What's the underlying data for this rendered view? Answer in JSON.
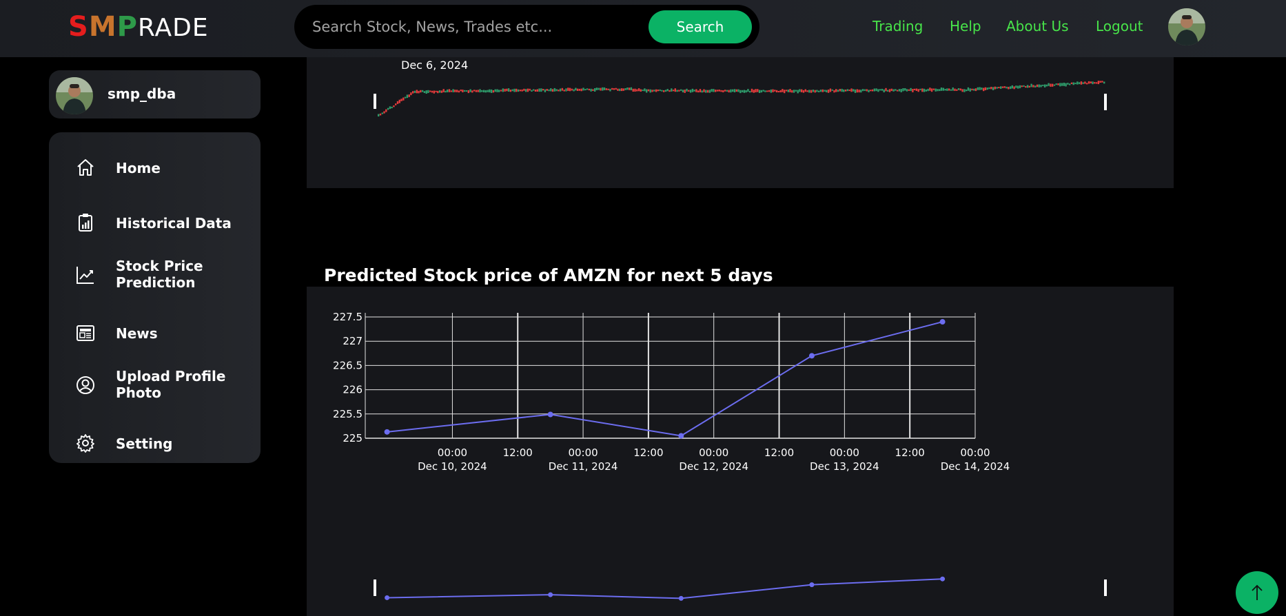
{
  "header": {
    "logo": {
      "s": "S",
      "m": "M",
      "p": "P",
      "rade": "RADE"
    },
    "search_placeholder": "Search Stock, News, Trades etc...",
    "search_button": "Search",
    "nav": [
      "Trading",
      "Help",
      "About Us",
      "Logout"
    ]
  },
  "sidebar": {
    "username": "smp_dba",
    "items": [
      {
        "label": "Home",
        "icon": "home-icon"
      },
      {
        "label": "Historical Data",
        "icon": "clipboard-chart-icon"
      },
      {
        "label": "Stock Price Prediction",
        "icon": "line-chart-icon"
      },
      {
        "label": "News",
        "icon": "newspaper-icon"
      },
      {
        "label": "Upload Profile Photo",
        "icon": "user-circle-icon"
      },
      {
        "label": "Setting",
        "icon": "gear-icon"
      }
    ]
  },
  "historical_chart": {
    "range_label": "Dec 6, 2024"
  },
  "prediction": {
    "title": "Predicted Stock price of AMZN for next 5 days"
  },
  "chart_data": {
    "type": "line",
    "title": "Predicted Stock price of AMZN for next 5 days",
    "x": [
      "2024-12-09T12:00",
      "2024-12-10T18:00",
      "2024-12-11T18:00",
      "2024-12-12T18:00",
      "2024-12-13T18:00"
    ],
    "series": [
      {
        "values": [
          225.13,
          225.49,
          225.05,
          226.7,
          227.4
        ]
      }
    ],
    "ylim": [
      225,
      227.5
    ],
    "y_ticks": [
      "227.5",
      "227",
      "226.5",
      "226",
      "225.5",
      "225"
    ],
    "x_ticks": [
      {
        "time": "00:00",
        "date": "Dec 10, 2024"
      },
      {
        "time": "12:00",
        "date": ""
      },
      {
        "time": "00:00",
        "date": "Dec 11, 2024"
      },
      {
        "time": "12:00",
        "date": ""
      },
      {
        "time": "00:00",
        "date": "Dec 12, 2024"
      },
      {
        "time": "12:00",
        "date": ""
      },
      {
        "time": "00:00",
        "date": "Dec 13, 2024"
      },
      {
        "time": "12:00",
        "date": ""
      },
      {
        "time": "00:00",
        "date": "Dec 14, 2024"
      }
    ],
    "grid": true,
    "line_color": "#6c6df0"
  },
  "colors": {
    "accent": "#0bb265",
    "nav": "#48e54a",
    "logo_s": "#e51d1d",
    "logo_m": "#c8742d",
    "logo_p": "#2e9a49"
  }
}
